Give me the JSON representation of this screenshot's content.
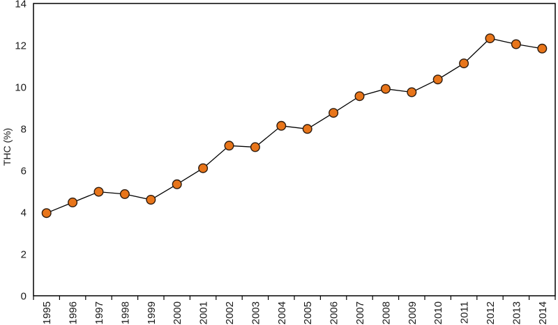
{
  "chart_data": {
    "type": "line",
    "title": "",
    "xlabel": "",
    "ylabel": "THC (%)",
    "categories": [
      "1995",
      "1996",
      "1997",
      "1998",
      "1999",
      "2000",
      "2001",
      "2002",
      "2003",
      "2004",
      "2005",
      "2006",
      "2007",
      "2008",
      "2009",
      "2010",
      "2011",
      "2012",
      "2013",
      "2014"
    ],
    "series": [
      {
        "name": "THC (%)",
        "values": [
          3.96,
          4.47,
          4.98,
          4.87,
          4.6,
          5.34,
          6.11,
          7.19,
          7.12,
          8.14,
          7.99,
          8.76,
          9.56,
          9.91,
          9.75,
          10.36,
          11.13,
          12.33,
          12.05,
          11.84
        ]
      }
    ],
    "ylim": [
      0,
      14
    ],
    "yticks": [
      0,
      2,
      4,
      6,
      8,
      10,
      12,
      14
    ],
    "grid": false,
    "legend": false,
    "marker": "circle",
    "colors": {
      "line": "#000000",
      "marker_fill": "#E8751A",
      "marker_border": "#2B1A0E",
      "axis": "#000000",
      "tick_label": "#1a1a1a"
    }
  }
}
